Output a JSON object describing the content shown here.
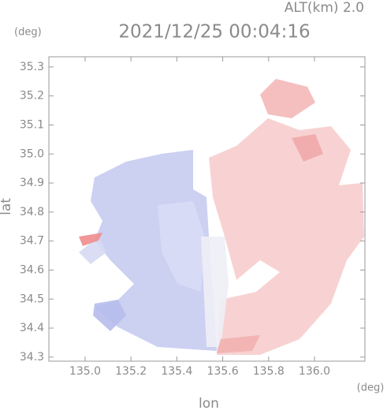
{
  "chart_data": {
    "type": "radar-map",
    "subtitle": "ALT(km) 2.0",
    "title": "2021/12/25 00:04:16",
    "y_unit": "(deg)",
    "x_unit": "(deg)",
    "xlabel": "lon",
    "ylabel": "lat",
    "xlim": [
      134.842,
      136.22
    ],
    "ylim": [
      34.286,
      35.335
    ],
    "xticks": [
      {
        "value": 135.0,
        "label": "135.0"
      },
      135.2,
      135.4,
      135.6,
      135.8,
      {
        "value": 136.0,
        "label": "136.0"
      }
    ],
    "yticks": [
      34.3,
      34.4,
      34.5,
      34.6,
      34.7,
      34.8,
      34.9,
      {
        "value": 35.0,
        "label": "35.0"
      },
      35.1,
      35.2,
      35.3
    ]
  }
}
